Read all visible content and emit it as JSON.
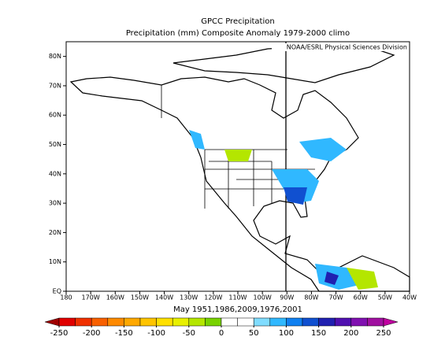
{
  "chart_data": {
    "type": "map",
    "title": "GPCC Precipitation",
    "subtitle": "Precipitation (mm) Composite Anomaly 1979-2000 climo",
    "credit": "NOAA/ESRL Physical Sciences Division",
    "xlabel": "May 1951,1986,2009,1976,2001",
    "xlim": [
      -180,
      -40
    ],
    "ylim": [
      0,
      85
    ],
    "xticks": [
      {
        "value": -180,
        "label": "180"
      },
      {
        "value": -170,
        "label": "170W"
      },
      {
        "value": -160,
        "label": "160W"
      },
      {
        "value": -150,
        "label": "150W"
      },
      {
        "value": -140,
        "label": "140W"
      },
      {
        "value": -130,
        "label": "130W"
      },
      {
        "value": -120,
        "label": "120W"
      },
      {
        "value": -110,
        "label": "110W"
      },
      {
        "value": -100,
        "label": "100W"
      },
      {
        "value": -90,
        "label": "90W"
      },
      {
        "value": -80,
        "label": "80W"
      },
      {
        "value": -70,
        "label": "70W"
      },
      {
        "value": -60,
        "label": "60W"
      },
      {
        "value": -50,
        "label": "50W"
      },
      {
        "value": -40,
        "label": "40W"
      }
    ],
    "yticks": [
      {
        "value": 0,
        "label": "EQ"
      },
      {
        "value": 10,
        "label": "10N"
      },
      {
        "value": 20,
        "label": "20N"
      },
      {
        "value": 30,
        "label": "30N"
      },
      {
        "value": 40,
        "label": "40N"
      },
      {
        "value": 50,
        "label": "50N"
      },
      {
        "value": 60,
        "label": "60N"
      },
      {
        "value": 70,
        "label": "70N"
      },
      {
        "value": 80,
        "label": "80N"
      }
    ],
    "colorbar": {
      "ticks": [
        -250,
        -200,
        -150,
        -100,
        -50,
        0,
        50,
        100,
        150,
        200,
        250
      ],
      "colors": [
        "#a00000",
        "#e00000",
        "#f03000",
        "#f86000",
        "#ff8a00",
        "#ffa800",
        "#ffc400",
        "#ffe000",
        "#e8f000",
        "#b4e600",
        "#78d200",
        "#ffffff",
        "#ffffff",
        "#80dcff",
        "#30b8ff",
        "#1080f0",
        "#1050d0",
        "#2020b0",
        "#5010b0",
        "#8010b0",
        "#a010a0",
        "#c000a0"
      ]
    }
  }
}
